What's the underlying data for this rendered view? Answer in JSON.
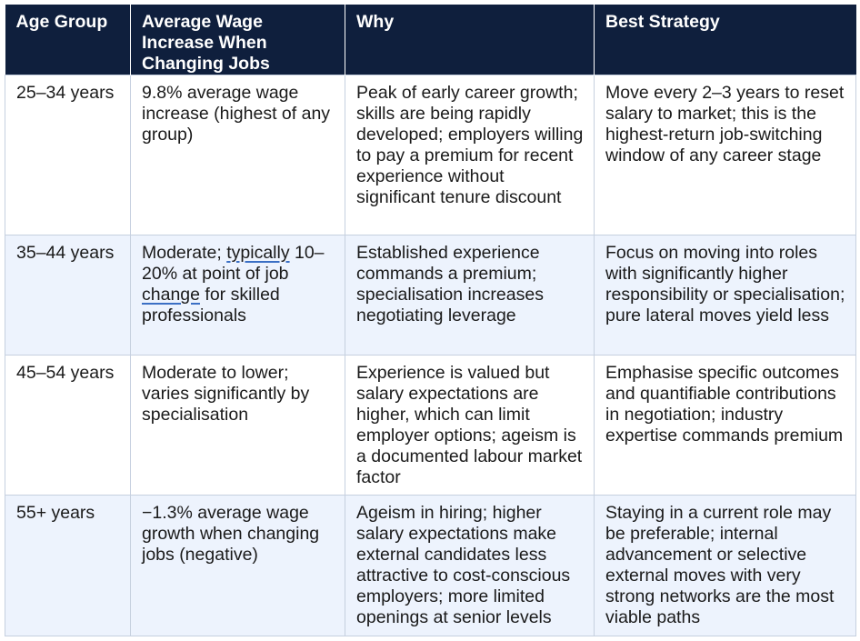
{
  "table": {
    "headers": [
      "Age Group",
      "Average Wage Increase When Changing Jobs",
      "Why",
      "Best Strategy"
    ],
    "rows": [
      {
        "age": "25–34 years",
        "increase": "9.8% average wage increase (highest of any group)",
        "why": "Peak of early career growth; skills are being rapidly developed; employers willing to pay a premium for recent experience without significant tenure discount",
        "strategy": "Move every 2–3 years to reset salary to market; this is the highest-return job-switching window of any career stage"
      },
      {
        "age": "35–44 years",
        "increase_parts": [
          "Moderate; ",
          "typically",
          " 10–20% at point of job ",
          "change",
          " for skilled professionals"
        ],
        "why": "Established experience commands a premium; specialisation increases negotiating leverage",
        "strategy": "Focus on moving into roles with significantly higher responsibility or specialisation; pure lateral moves yield less"
      },
      {
        "age": "45–54 years",
        "increase": "Moderate to lower; varies significantly by specialisation",
        "why": "Experience is valued but salary expectations are higher, which can limit employer options; ageism is a documented labour market factor",
        "strategy": "Emphasise specific outcomes and quantifiable contributions in negotiation; industry expertise commands premium"
      },
      {
        "age": "55+ years",
        "increase": "−1.3% average wage growth when changing jobs (negative)",
        "why": "Ageism in hiring; higher salary expectations make external candidates less attractive to cost-conscious employers; more limited openings at senior levels",
        "strategy": "Staying in a current role may be preferable; internal advancement or selective external moves with very strong networks are the most viable paths"
      }
    ]
  },
  "colors": {
    "header_bg": "#0f1f3d",
    "header_text": "#ffffff",
    "row_alt_bg": "#edf3fd",
    "border": "#c6d0df",
    "squiggle": "#3b6fc4"
  }
}
